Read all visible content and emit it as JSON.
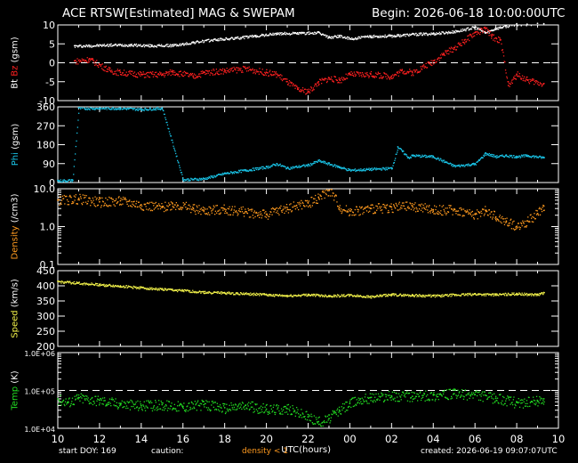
{
  "header": {
    "title": "ACE RTSW[Estimated] MAG & SWEPAM",
    "begin": "Begin: 2026-06-18 10:00:00UTC"
  },
  "footer": {
    "start_doy": "start DOY: 169",
    "caution": "caution:",
    "density_note": "density < 1",
    "created": "created: 2026-06-19 09:07:07UTC"
  },
  "colors": {
    "bt": "#ffffff",
    "bz": "#ff2020",
    "phi": "#19c3e6",
    "density": "#ff9a1f",
    "speed": "#f3f34a",
    "temp": "#22dd22",
    "axis": "#ffffff"
  },
  "chart_data": [
    {
      "type": "scatter",
      "panel": "magnetic field",
      "ylabel_parts": [
        "Bt",
        "Bz",
        "(gsm)"
      ],
      "ylim": [
        -10,
        10
      ],
      "yticks": [
        "-10",
        "-5",
        "0",
        "5",
        "10"
      ],
      "reference_line": 0,
      "series": [
        {
          "name": "Bt",
          "x": [
            10.8,
            11.5,
            12.5,
            13.5,
            14.5,
            15.5,
            16,
            16.5,
            17.5,
            18.5,
            19.5,
            20.5,
            21.5,
            22.5,
            23,
            23.5,
            24,
            25,
            26,
            27,
            28,
            29,
            30,
            30.5,
            31,
            31.5,
            32,
            32.5,
            33,
            33.3
          ],
          "values": [
            4.5,
            4.6,
            4.8,
            4.8,
            4.6,
            4.7,
            5.0,
            5.5,
            6.2,
            6.6,
            7.2,
            7.8,
            7.9,
            8.0,
            6.8,
            7.2,
            6.4,
            7.1,
            7.2,
            7.6,
            7.8,
            8.3,
            9.5,
            8.0,
            9.2,
            9.8,
            10.3,
            10.2,
            10.4,
            10.3
          ]
        },
        {
          "name": "Bz",
          "x": [
            10.8,
            11.5,
            12,
            12.5,
            13,
            14,
            15,
            15.5,
            16.5,
            17,
            18,
            19,
            20,
            20.5,
            21,
            21.5,
            22,
            22.5,
            23,
            23.5,
            24,
            25,
            26,
            26.5,
            27,
            27.5,
            28,
            28.5,
            29,
            29.5,
            30,
            30.5,
            30.8,
            31.2,
            31.6,
            32,
            32.5,
            33.3
          ],
          "values": [
            0.5,
            1.0,
            -0.5,
            -2.0,
            -2.5,
            -3.0,
            -3.0,
            -2.3,
            -3.5,
            -2.5,
            -2.0,
            -1.5,
            -2.5,
            -3.0,
            -5.0,
            -7.0,
            -7.5,
            -5.0,
            -4.0,
            -4.5,
            -3.0,
            -3.0,
            -3.5,
            -2.0,
            -2.5,
            -1.0,
            0.5,
            2.5,
            4.0,
            6.0,
            8.0,
            9.0,
            7.0,
            6.0,
            -6.0,
            -3.0,
            -4.5,
            -5.5
          ]
        }
      ]
    },
    {
      "type": "scatter",
      "panel": "phi angle",
      "ylabel_parts": [
        "Phi",
        "(gsm)"
      ],
      "ylim": [
        0,
        360
      ],
      "yticks": [
        "0",
        "90",
        "180",
        "270",
        "360"
      ],
      "series": [
        {
          "name": "Phi",
          "x": [
            10,
            10.7,
            11,
            12,
            13,
            14,
            15,
            16,
            17,
            18,
            19,
            20,
            20.5,
            21,
            22,
            22.5,
            23,
            23.5,
            24,
            25,
            26,
            26.3,
            26.8,
            27,
            28,
            29,
            30,
            30.5,
            31,
            31.5,
            32,
            32.5,
            33.3
          ],
          "values": [
            10,
            12,
            355,
            355,
            355,
            350,
            355,
            15,
            20,
            45,
            60,
            75,
            90,
            70,
            85,
            105,
            90,
            75,
            60,
            65,
            70,
            170,
            120,
            130,
            125,
            80,
            90,
            140,
            125,
            130,
            125,
            130,
            120
          ]
        }
      ]
    },
    {
      "type": "scatter",
      "panel": "density",
      "ylabel_parts": [
        "Density",
        "(/cm3)"
      ],
      "scale": "log",
      "ylim": [
        0.1,
        10.0
      ],
      "yticks": [
        "0.1",
        "1.0",
        "10.0"
      ],
      "series": [
        {
          "name": "Density",
          "x": [
            10,
            11,
            12,
            13,
            14,
            15,
            15.5,
            16.5,
            17,
            18,
            19,
            20,
            21,
            22,
            22.5,
            23,
            23.5,
            24,
            25,
            26,
            27,
            28,
            29,
            30,
            30.5,
            31,
            31.5,
            32,
            32.5,
            33,
            33.3
          ],
          "values": [
            5,
            5.5,
            4.5,
            4.8,
            3.8,
            3.2,
            4.0,
            3.0,
            2.7,
            2.9,
            2.5,
            2.1,
            3.2,
            4.2,
            6,
            9,
            3.2,
            2.6,
            3,
            3.3,
            3.5,
            2.8,
            2.8,
            2.1,
            2.7,
            1.8,
            1.4,
            1.0,
            1.4,
            2.2,
            3.5
          ]
        }
      ]
    },
    {
      "type": "scatter",
      "panel": "speed",
      "ylabel_parts": [
        "Speed",
        "(km/s)"
      ],
      "ylim": [
        200,
        450
      ],
      "yticks": [
        "200",
        "250",
        "300",
        "350",
        "400",
        "450"
      ],
      "series": [
        {
          "name": "Speed",
          "x": [
            10,
            11,
            12,
            13,
            14,
            15,
            16,
            17,
            18,
            19,
            20,
            21,
            22,
            23,
            24,
            25,
            26,
            27,
            28,
            29,
            30,
            31,
            32,
            33,
            33.3
          ],
          "values": [
            415,
            410,
            405,
            400,
            395,
            390,
            385,
            380,
            378,
            375,
            372,
            368,
            372,
            368,
            370,
            365,
            372,
            370,
            368,
            371,
            374,
            372,
            375,
            372,
            378
          ]
        }
      ]
    },
    {
      "type": "scatter",
      "panel": "temperature",
      "ylabel_parts": [
        "Temp",
        "(K)"
      ],
      "scale": "log",
      "ylim": [
        10000,
        1000000
      ],
      "yticks": [
        "1.0E+04",
        "1.0E+05",
        "1.0E+06"
      ],
      "reference_line": 100000,
      "series": [
        {
          "name": "Temp",
          "x": [
            10,
            10.5,
            11,
            12,
            13,
            14,
            15,
            16,
            17,
            18,
            19,
            20,
            21,
            22,
            22.5,
            23,
            23.5,
            24,
            24.5,
            25,
            26,
            27,
            28,
            29,
            30,
            31,
            32,
            33,
            33.3
          ],
          "values": [
            60000,
            50000,
            65000,
            55000,
            45000,
            40000,
            42000,
            38000,
            42000,
            35000,
            40000,
            32000,
            33000,
            20000,
            15000,
            18000,
            30000,
            45000,
            60000,
            65000,
            72000,
            70000,
            75000,
            82000,
            78000,
            62000,
            48000,
            52000,
            60000
          ]
        }
      ]
    }
  ],
  "xaxis": {
    "label": "UTC(hours)",
    "range": [
      10,
      34
    ],
    "tick_labels": [
      "10",
      "12",
      "14",
      "16",
      "18",
      "20",
      "22",
      "00",
      "02",
      "04",
      "06",
      "08",
      "10"
    ]
  }
}
